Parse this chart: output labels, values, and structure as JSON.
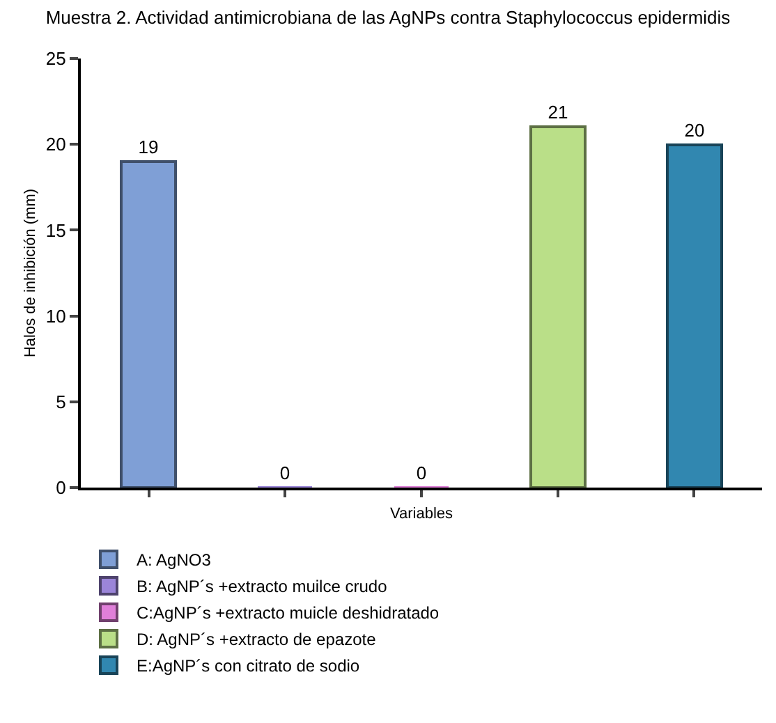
{
  "chart_data": {
    "type": "bar",
    "title": "Muestra 2. Actividad antimicrobiana de las AgNPs contra Staphylococcus epidermidis",
    "xlabel": "Variables",
    "ylabel": "Halos de inhibición (mm)",
    "categories": [
      null,
      null,
      null,
      null,
      null
    ],
    "series": [
      {
        "name": "A: AgNO3",
        "color": "#7f9fd6",
        "values": [
          19,
          null,
          null,
          null,
          null
        ]
      },
      {
        "name": "B: AgNP´s +extracto muilce crudo",
        "color": "#9b85d9",
        "values": [
          null,
          0,
          null,
          null,
          null
        ]
      },
      {
        "name": "C:AgNP´s +extracto muicle deshidratado",
        "color": "#e07fd9",
        "values": [
          null,
          null,
          0,
          null,
          null
        ]
      },
      {
        "name": "D: AgNP´s +extracto de epazote",
        "color": "#badf88",
        "values": [
          null,
          null,
          null,
          21,
          null
        ]
      },
      {
        "name": "E:AgNP´s con citrato de sodio",
        "color": "#3187b0",
        "values": [
          null,
          null,
          null,
          null,
          20
        ]
      }
    ],
    "ylim": [
      0,
      25
    ],
    "yticks": [
      0,
      5,
      10,
      15,
      20,
      25
    ],
    "grid": false,
    "legend": "bottom",
    "data_labels": true
  }
}
